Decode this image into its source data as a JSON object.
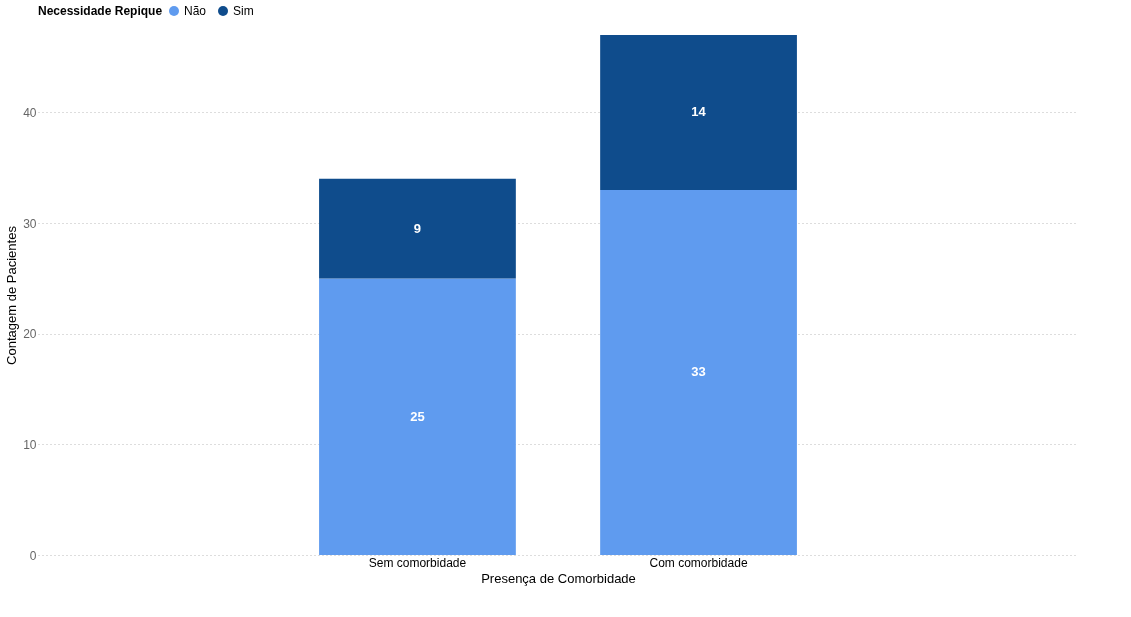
{
  "chart_data": {
    "type": "bar",
    "stacked": true,
    "xlabel": "Presença de Comorbidade",
    "ylabel": "Contagem de Pacientes",
    "legend_title": "Necessidade Repique",
    "legend": "top",
    "categories": [
      "Sem comorbidade",
      "Com comorbidade"
    ],
    "series": [
      {
        "name": "Não",
        "color": "#5f9bef",
        "values": [
          25,
          33
        ]
      },
      {
        "name": "Sim",
        "color": "#0f4c8c",
        "values": [
          9,
          14
        ]
      }
    ],
    "ylim": [
      0,
      47
    ],
    "yticks": [
      0,
      10,
      20,
      30,
      40
    ],
    "grid": "y",
    "data_labels": true
  }
}
